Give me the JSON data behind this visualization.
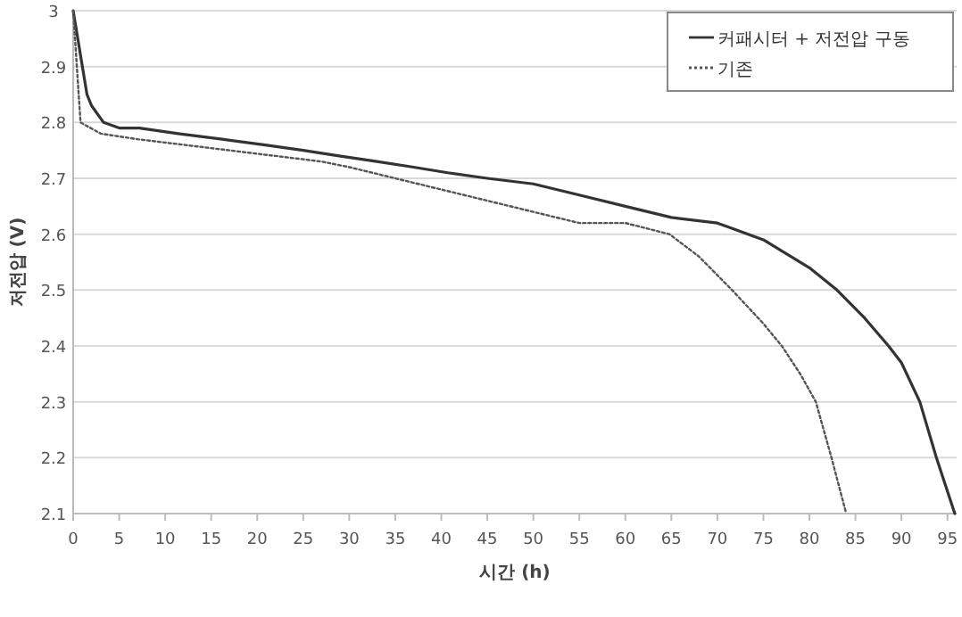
{
  "chart_data": {
    "type": "line",
    "xlabel": "시간 (h)",
    "ylabel": "저전압 (V)",
    "xlim": [
      0,
      96
    ],
    "ylim": [
      2.1,
      3
    ],
    "xticks": [
      0,
      5,
      10,
      15,
      20,
      25,
      30,
      35,
      40,
      45,
      50,
      55,
      60,
      65,
      70,
      75,
      80,
      85,
      90,
      95
    ],
    "yticks": [
      2.1,
      2.2,
      2.3,
      2.4,
      2.5,
      2.6,
      2.7,
      2.8,
      2.9,
      3
    ],
    "grid": "y",
    "legend": "top right",
    "marker": "none",
    "series": [
      {
        "name": "커패시터 + 저전압 구동",
        "color": "#333333",
        "line_style": "solid",
        "x": [
          0,
          0.5,
          1,
          1.5,
          2,
          3.3,
          5,
          7.2,
          11.4,
          16.2,
          20.7,
          25,
          28.9,
          33,
          37,
          40.7,
          45,
          50,
          55,
          60,
          65,
          70,
          75,
          80,
          83,
          86,
          88.6,
          90,
          92,
          93.8,
          95,
          95.8
        ],
        "values": [
          3,
          2.95,
          2.9,
          2.85,
          2.83,
          2.8,
          2.79,
          2.79,
          2.78,
          2.77,
          2.76,
          2.75,
          2.74,
          2.73,
          2.72,
          2.71,
          2.7,
          2.69,
          2.67,
          2.65,
          2.63,
          2.62,
          2.59,
          2.54,
          2.5,
          2.45,
          2.4,
          2.37,
          2.3,
          2.2,
          2.14,
          2.1
        ]
      },
      {
        "name": "기존",
        "color": "#555555",
        "line_style": "dotted",
        "x": [
          0,
          0.4,
          0.8,
          3,
          7,
          12,
          17,
          22,
          27,
          30,
          35,
          40,
          45,
          50,
          55,
          60,
          64.8,
          68,
          71.6,
          75,
          77,
          79,
          80.7,
          82.4,
          84
        ],
        "values": [
          3,
          2.9,
          2.8,
          2.78,
          2.77,
          2.76,
          2.75,
          2.74,
          2.73,
          2.72,
          2.7,
          2.68,
          2.66,
          2.64,
          2.62,
          2.62,
          2.6,
          2.56,
          2.5,
          2.44,
          2.4,
          2.35,
          2.3,
          2.2,
          2.1
        ]
      }
    ]
  }
}
